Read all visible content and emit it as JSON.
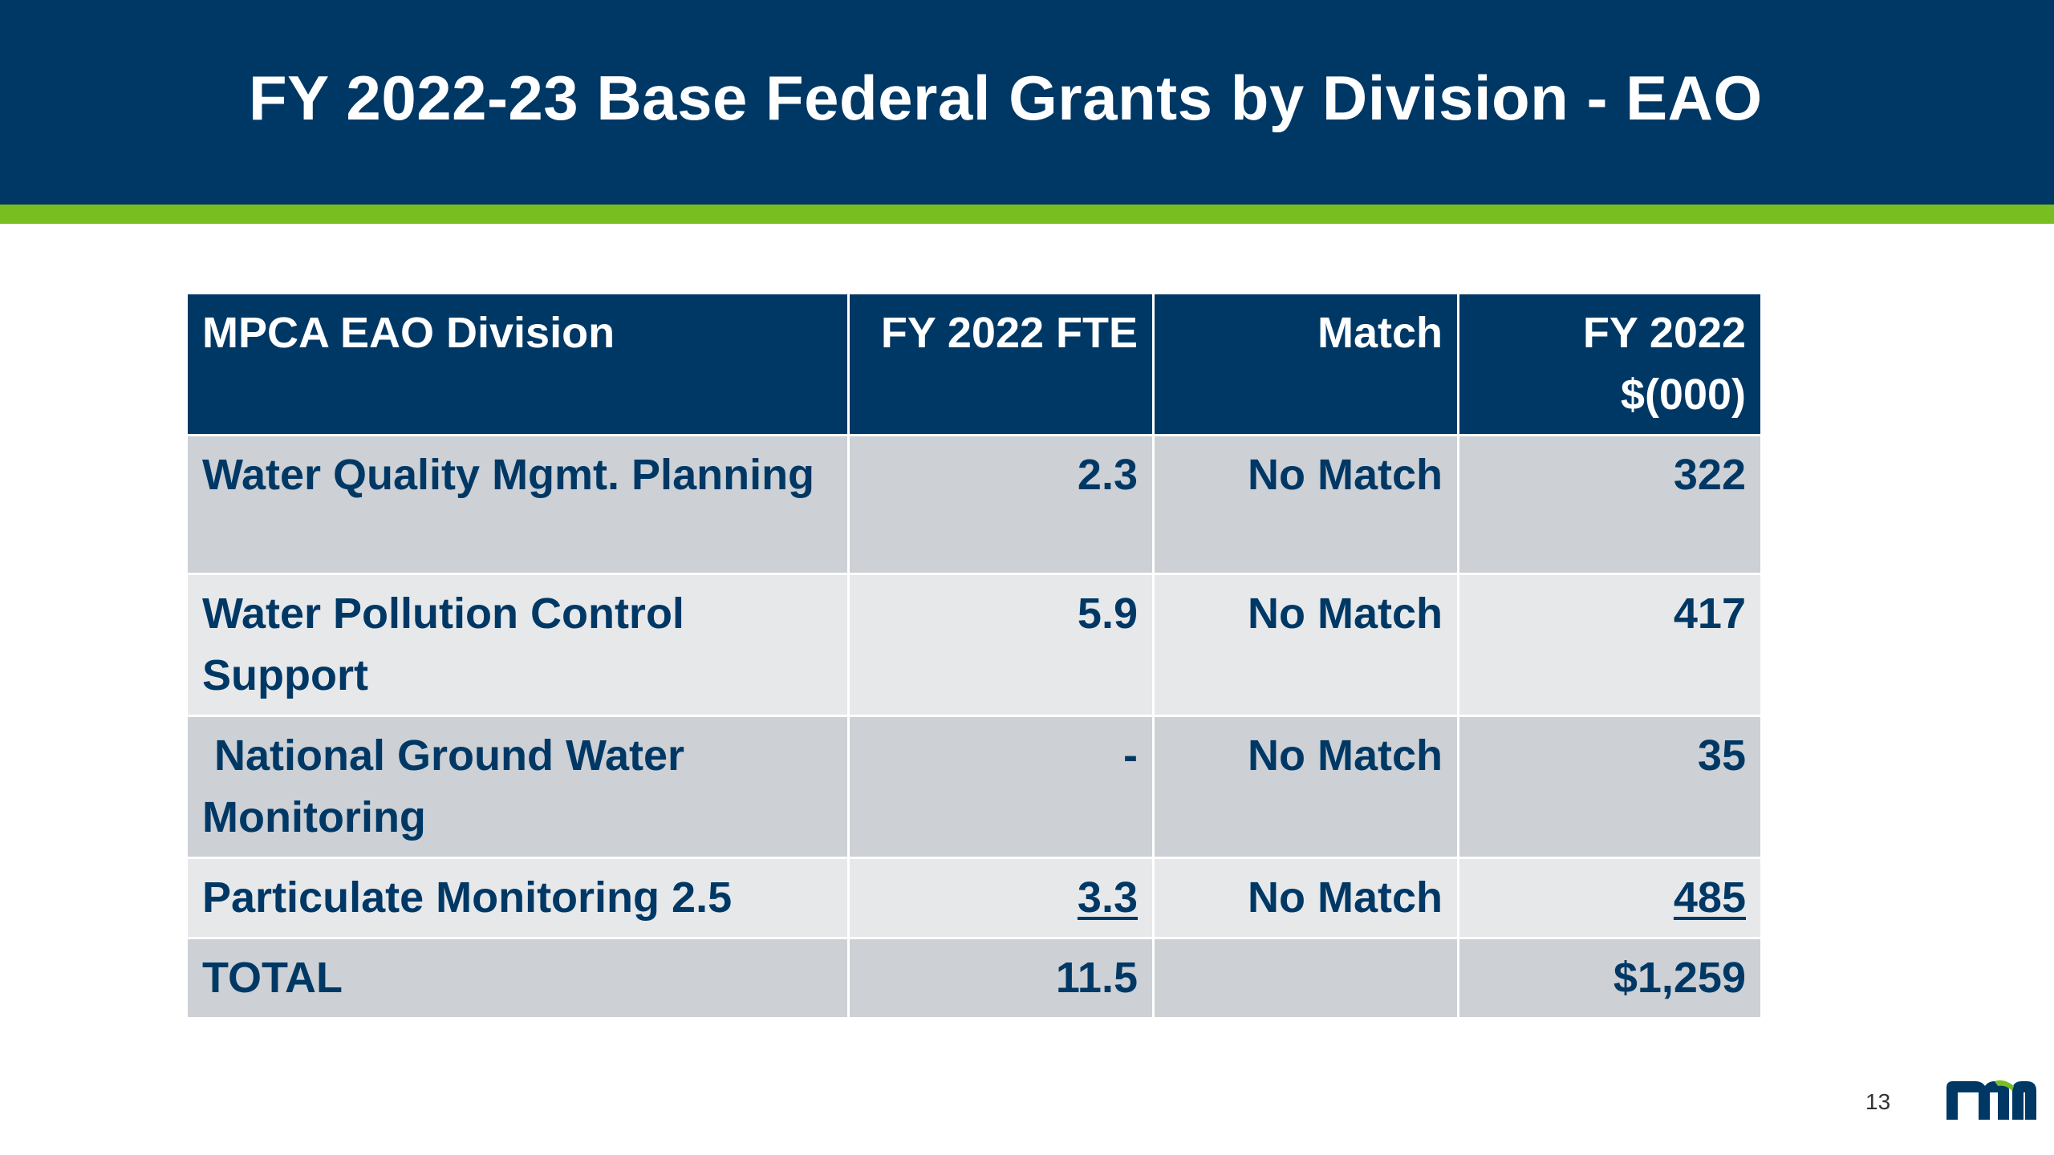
{
  "slide": {
    "title": "FY 2022-23 Base Federal Grants by Division - EAO",
    "page_number": "13",
    "logo_text": "mn"
  },
  "colors": {
    "header_navy": "#003865",
    "accent_green": "#78be21",
    "row_dark": "#cdd0d4",
    "row_light": "#e7e8ea",
    "logo_green": "#78be21"
  },
  "table": {
    "headers": [
      "MPCA EAO Division",
      "FY 2022 FTE",
      "Match",
      "FY 2022 $(000)"
    ],
    "rows": [
      {
        "division": "Water Quality Mgmt. Planning",
        "fte": "2.3",
        "match": "No Match",
        "amount": "322"
      },
      {
        "division": "Water Pollution Control Support",
        "fte": "5.9",
        "match": "No Match",
        "amount": "417"
      },
      {
        "division": " National Ground Water Monitoring",
        "fte": "-",
        "match": "No Match",
        "amount": "35"
      },
      {
        "division": "Particulate Monitoring 2.5",
        "fte": "3.3",
        "match": "No Match",
        "amount": "485"
      }
    ],
    "total": {
      "label": "TOTAL",
      "fte": "11.5",
      "match": "",
      "amount": "$1,259"
    }
  }
}
